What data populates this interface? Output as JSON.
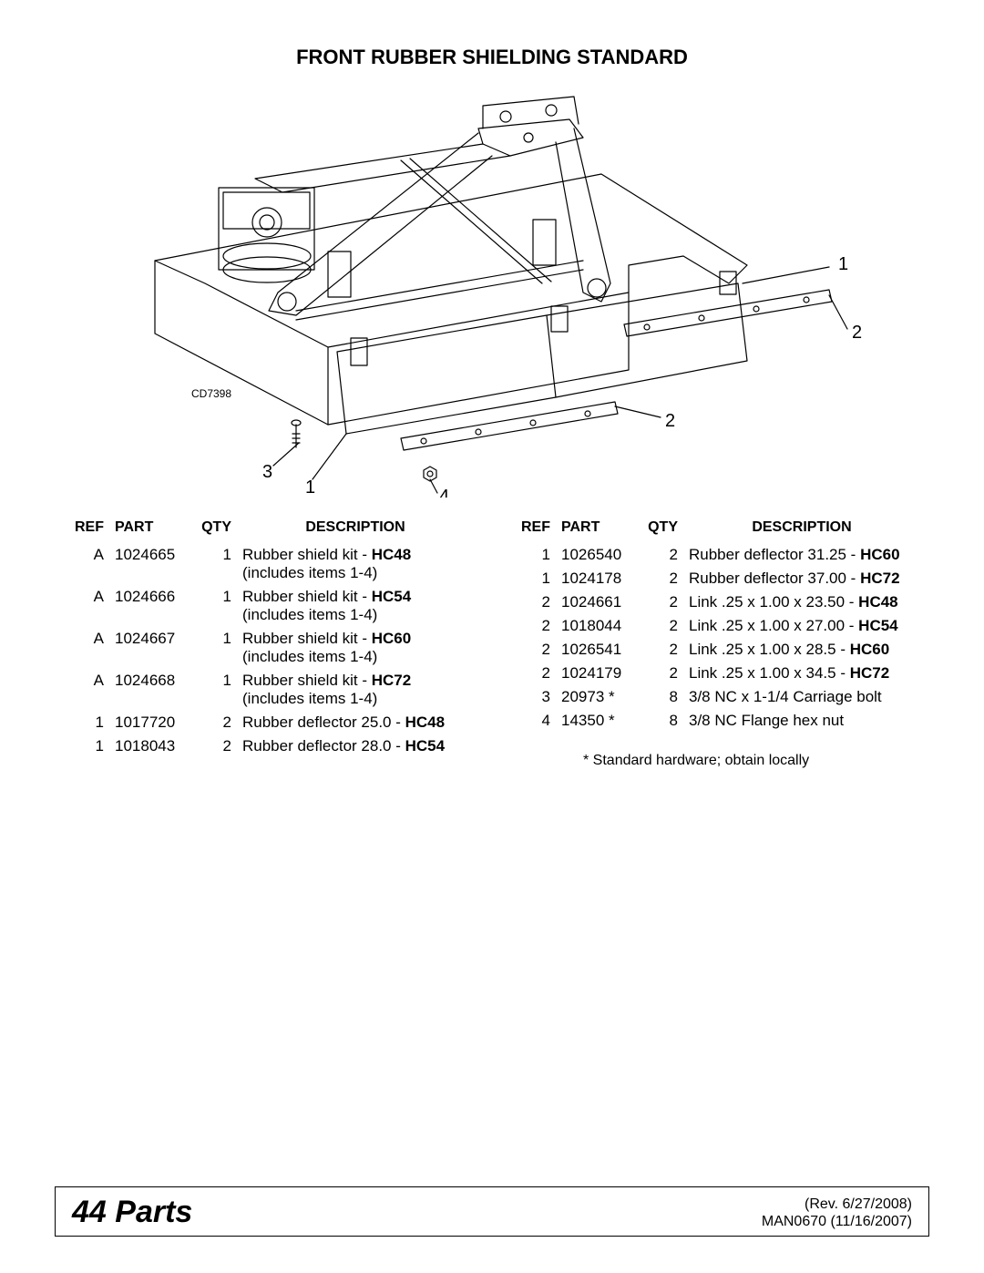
{
  "title": "FRONT RUBBER SHIELDING STANDARD",
  "diagram": {
    "label_code": "CD7398",
    "callouts": [
      "1",
      "2",
      "2",
      "3",
      "1",
      "4"
    ],
    "stroke": "#000000",
    "fill": "#ffffff",
    "stroke_width": 1.2
  },
  "headers": {
    "ref": "REF",
    "part": "PART",
    "qty": "QTY",
    "desc": "DESCRIPTION"
  },
  "left_table": [
    {
      "ref": "A",
      "part": "1024665",
      "qty": "1",
      "desc": "Rubber shield kit - ",
      "bold": "HC48",
      "sub": "(includes items 1-4)"
    },
    {
      "ref": "A",
      "part": "1024666",
      "qty": "1",
      "desc": "Rubber shield kit - ",
      "bold": "HC54",
      "sub": "(includes items 1-4)"
    },
    {
      "ref": "A",
      "part": "1024667",
      "qty": "1",
      "desc": "Rubber shield kit - ",
      "bold": "HC60",
      "sub": "(includes items 1-4)"
    },
    {
      "ref": "A",
      "part": "1024668",
      "qty": "1",
      "desc": "Rubber shield kit - ",
      "bold": "HC72",
      "sub": "(includes items 1-4)"
    },
    {
      "ref": "1",
      "part": "1017720",
      "qty": "2",
      "desc": "Rubber deflector 25.0 - ",
      "bold": "HC48",
      "sub": ""
    },
    {
      "ref": "1",
      "part": "1018043",
      "qty": "2",
      "desc": "Rubber deflector 28.0 - ",
      "bold": "HC54",
      "sub": ""
    }
  ],
  "right_table": [
    {
      "ref": "1",
      "part": "1026540",
      "qty": "2",
      "desc": "Rubber deflector 31.25 - ",
      "bold": "HC60",
      "sub": ""
    },
    {
      "ref": "1",
      "part": "1024178",
      "qty": "2",
      "desc": "Rubber deflector 37.00 - ",
      "bold": "HC72",
      "sub": ""
    },
    {
      "ref": "2",
      "part": "1024661",
      "qty": "2",
      "desc": "Link .25 x 1.00 x 23.50 - ",
      "bold": "HC48",
      "sub": ""
    },
    {
      "ref": "2",
      "part": "1018044",
      "qty": "2",
      "desc": "Link .25 x 1.00 x 27.00 - ",
      "bold": "HC54",
      "sub": ""
    },
    {
      "ref": "2",
      "part": "1026541",
      "qty": "2",
      "desc": "Link .25 x 1.00 x 28.5 - ",
      "bold": "HC60",
      "sub": ""
    },
    {
      "ref": "2",
      "part": "1024179",
      "qty": "2",
      "desc": "Link .25 x 1.00 x 34.5 - ",
      "bold": "HC72",
      "sub": ""
    },
    {
      "ref": "3",
      "part": "20973 *",
      "qty": "8",
      "desc": "3/8 NC x 1-1/4 Carriage bolt",
      "bold": "",
      "sub": ""
    },
    {
      "ref": "4",
      "part": "14350 *",
      "qty": "8",
      "desc": "3/8 NC Flange hex nut",
      "bold": "",
      "sub": ""
    }
  ],
  "footnote": "*    Standard hardware; obtain locally",
  "footer": {
    "page_num": "44",
    "section": "Parts",
    "rev": "(Rev. 6/27/2008)",
    "man": "MAN0670 (11/16/2007)"
  }
}
